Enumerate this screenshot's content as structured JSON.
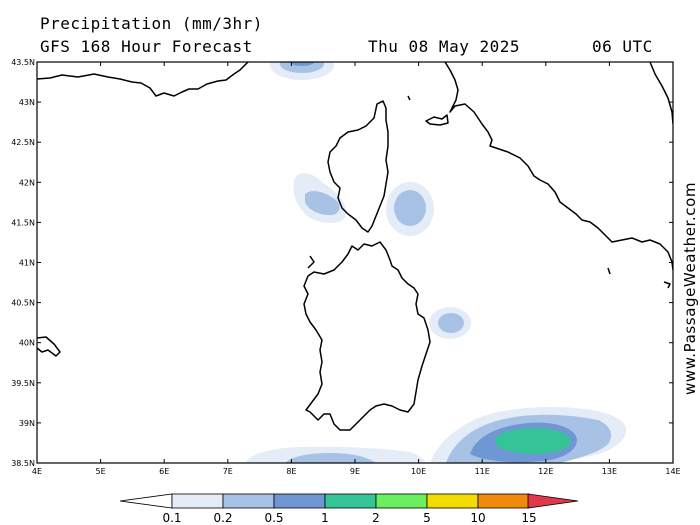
{
  "header": {
    "title": "Precipitation (mm/3hr)",
    "subtitle": "GFS 168 Hour Forecast",
    "date": "Thu 08 May 2025",
    "time": "06 UTC"
  },
  "brand": "www.PassageWeather.com",
  "axes": {
    "lat_labels": [
      "43.5N",
      "43N",
      "42.5N",
      "42N",
      "41.5N",
      "41N",
      "40.5N",
      "40N",
      "39.5N",
      "39N",
      "38.5N"
    ],
    "lon_labels": [
      "4E",
      "5E",
      "6E",
      "7E",
      "8E",
      "9E",
      "10E",
      "11E",
      "12E",
      "13E",
      "14E"
    ]
  },
  "legend": {
    "labels": [
      "0.1",
      "0.2",
      "0.5",
      "1",
      "2",
      "5",
      "10",
      "15"
    ],
    "colors": [
      "#ffffff",
      "#e4ecf8",
      "#a8c2e6",
      "#6e97d4",
      "#35c496",
      "#6cef5e",
      "#f5dc00",
      "#f08a0a",
      "#e03848"
    ]
  }
}
